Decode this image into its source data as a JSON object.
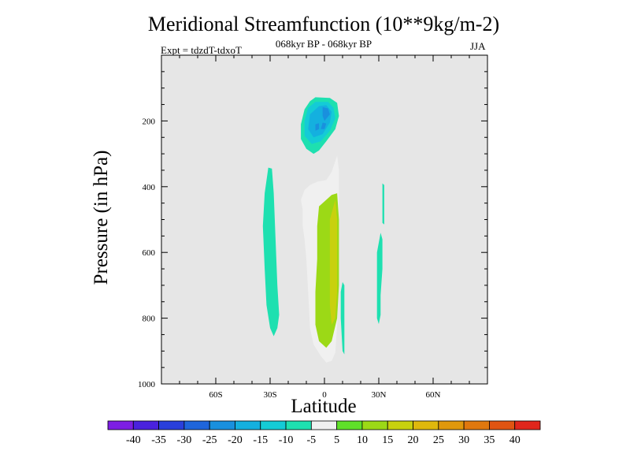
{
  "header": {
    "title": "Meridional Streamfunction (10**9kg/m-2)",
    "subtitle": "068kyr BP - 068kyr BP",
    "left_label": "Expt = tdzdT-tdxoT",
    "right_label": "JJA"
  },
  "chart_data": {
    "type": "contour",
    "title": "Meridional Streamfunction (10**9kg/m-2)",
    "subtitle": "068kyr BP - 068kyr BP",
    "xlabel": "Latitude",
    "ylabel": "Pressure (in hPa)",
    "xlim": [
      -90,
      90
    ],
    "ylim": [
      1000,
      0
    ],
    "x_ticks": [
      {
        "value": -60,
        "label": "60S"
      },
      {
        "value": -30,
        "label": "30S"
      },
      {
        "value": 0,
        "label": "0"
      },
      {
        "value": 30,
        "label": "30N"
      },
      {
        "value": 60,
        "label": "60N"
      }
    ],
    "y_ticks": [
      {
        "value": 200,
        "label": "200"
      },
      {
        "value": 400,
        "label": "400"
      },
      {
        "value": 600,
        "label": "600"
      },
      {
        "value": 800,
        "label": "800"
      },
      {
        "value": 1000,
        "label": "1000"
      }
    ],
    "background_color": "#e6e6e6",
    "colorbar": {
      "labels": [
        "-40",
        "-35",
        "-30",
        "-25",
        "-20",
        "-15",
        "-10",
        "-5",
        "5",
        "10",
        "15",
        "20",
        "25",
        "30",
        "35",
        "40"
      ],
      "colors": [
        "#7d1ee3",
        "#4a22dd",
        "#2a3fdb",
        "#1f65db",
        "#1990de",
        "#14b0df",
        "#14cbd6",
        "#1ee0b0",
        "#f0f0f0",
        "#5fe02a",
        "#9cd916",
        "#c8d10e",
        "#dfb80c",
        "#e0980c",
        "#e0780e",
        "#e05412",
        "#e0261c"
      ]
    },
    "features": [
      {
        "name": "negative-cell-upper",
        "lat_range": [
          -13,
          8
        ],
        "pressure_range": [
          130,
          300
        ],
        "min_value": -25,
        "levels": [
          -10,
          -15,
          -20,
          -25
        ]
      },
      {
        "name": "positive-cell-main",
        "lat_range": [
          -13,
          8
        ],
        "pressure_range": [
          305,
          930
        ],
        "max_value": 15,
        "levels": [
          5,
          10,
          15
        ]
      },
      {
        "name": "negative-band-south",
        "lat_range": [
          -34,
          -25
        ],
        "pressure_range": [
          340,
          855
        ],
        "levels": [
          -10
        ]
      },
      {
        "name": "negative-band-equator",
        "lat_range": [
          9,
          12
        ],
        "pressure_range": [
          690,
          910
        ],
        "levels": [
          -10
        ]
      },
      {
        "name": "negative-band-north",
        "lat_range": [
          29,
          33
        ],
        "pressure_range": [
          540,
          820
        ],
        "levels": [
          -10
        ]
      },
      {
        "name": "negative-sliver-north",
        "lat_range": [
          32,
          34
        ],
        "pressure_range": [
          390,
          520
        ],
        "levels": [
          -10
        ]
      }
    ]
  }
}
